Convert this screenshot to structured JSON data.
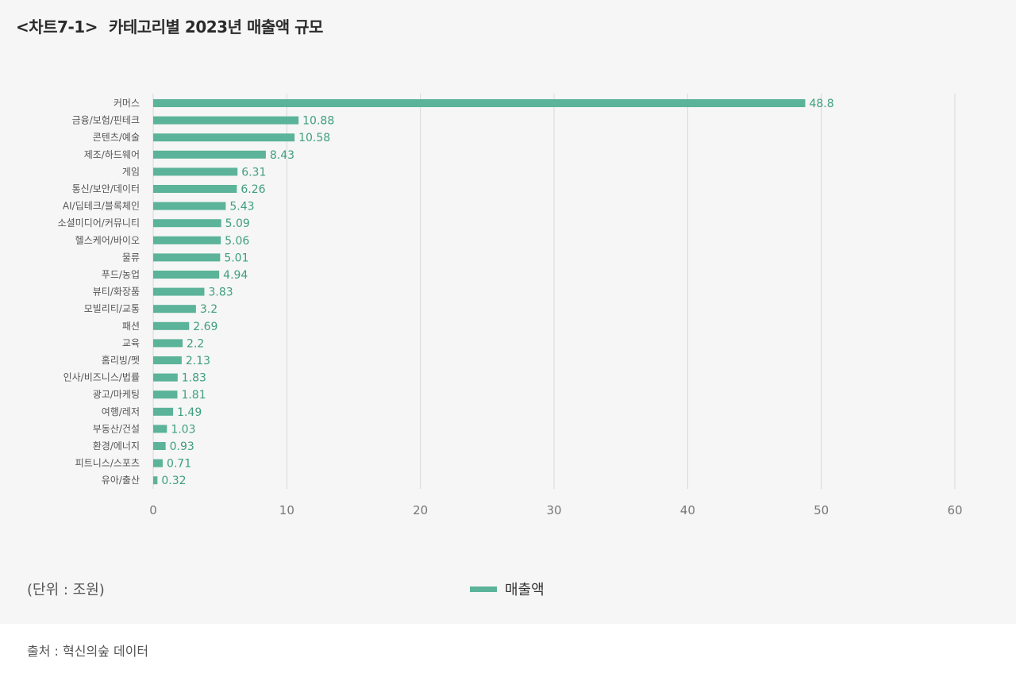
{
  "header": {
    "chart_no": "<차트7-1>",
    "title": "카테고리별 2023년 매출액 규모"
  },
  "footer": {
    "unit": "(단위 : 조원)",
    "source": "출처 : 혁신의숲 데이터"
  },
  "colors": {
    "bar": "#5bb399",
    "value_text": "#3f9e7f",
    "grid": "#d6d8d7"
  },
  "chart_data": {
    "type": "bar",
    "orientation": "horizontal",
    "title": "카테고리별 2023년 매출액 규모",
    "xlabel": "",
    "ylabel": "",
    "xlim": [
      0,
      60
    ],
    "xticks": [
      0,
      10,
      20,
      30,
      40,
      50,
      60
    ],
    "grid": true,
    "legend_position": "bottom",
    "categories": [
      "커머스",
      "금융/보험/핀테크",
      "콘텐츠/예술",
      "제조/하드웨어",
      "게임",
      "통신/보안/데이터",
      "AI/딥테크/블록체인",
      "소셜미디어/커뮤니티",
      "헬스케어/바이오",
      "물류",
      "푸드/농업",
      "뷰티/화장품",
      "모빌리티/교통",
      "패션",
      "교육",
      "홈리빙/펫",
      "인사/비즈니스/법률",
      "광고/마케팅",
      "여행/레저",
      "부동산/건설",
      "환경/에너지",
      "피트니스/스포츠",
      "유아/출산"
    ],
    "series": [
      {
        "name": "매출액",
        "values": [
          48.8,
          10.88,
          10.58,
          8.43,
          6.31,
          6.26,
          5.43,
          5.09,
          5.06,
          5.01,
          4.94,
          3.83,
          3.2,
          2.69,
          2.2,
          2.13,
          1.83,
          1.81,
          1.49,
          1.03,
          0.93,
          0.71,
          0.32
        ]
      }
    ]
  }
}
